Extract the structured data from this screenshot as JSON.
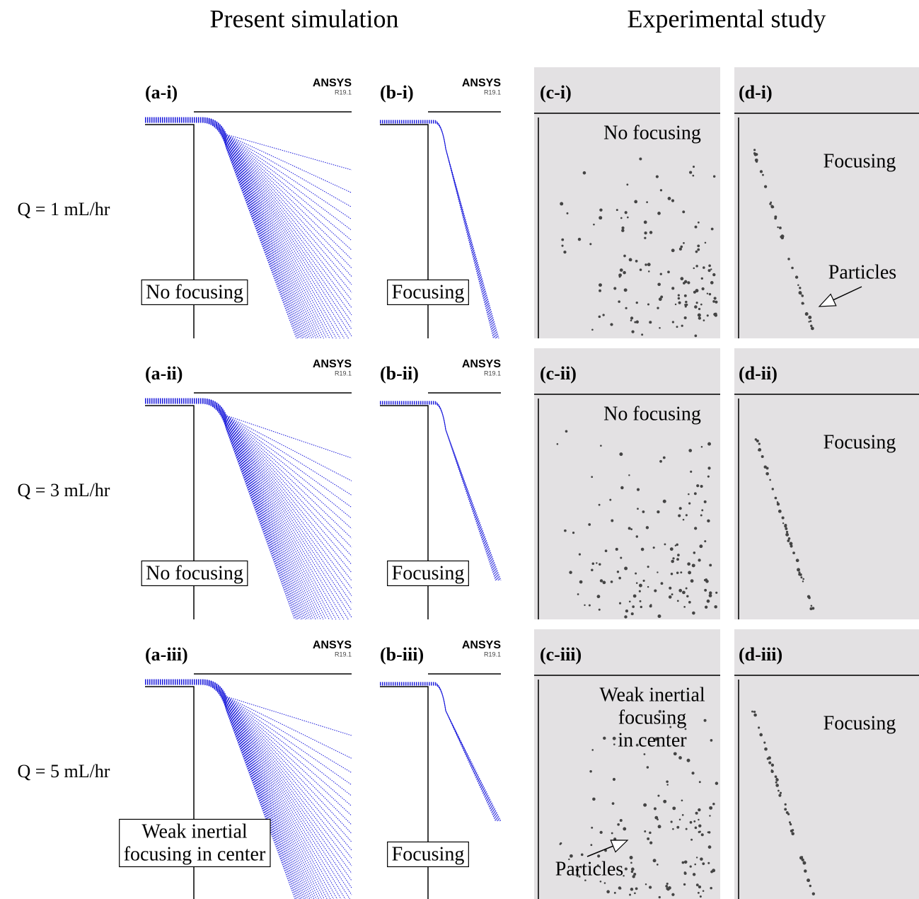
{
  "headers": [
    "Present simulation",
    "Experimental study"
  ],
  "rows": [
    {
      "label": "Q = 1 mL/hr",
      "panels": [
        {
          "label": "(a-i)",
          "logo": "ANSYS",
          "version": "R19.1",
          "annotation": [
            "No focusing"
          ]
        },
        {
          "label": "(b-i)",
          "logo": "ANSYS",
          "version": "R19.1",
          "annotation": [
            "Focusing"
          ]
        },
        {
          "label": "(c-i)",
          "annotation": [
            "No focusing"
          ]
        },
        {
          "label": "(d-i)",
          "annotation": [
            "Focusing"
          ],
          "pointer": "Particles"
        }
      ]
    },
    {
      "label": "Q = 3 mL/hr",
      "panels": [
        {
          "label": "(a-ii)",
          "logo": "ANSYS",
          "version": "R19.1",
          "annotation": [
            "No focusing"
          ]
        },
        {
          "label": "(b-ii)",
          "logo": "ANSYS",
          "version": "R19.1",
          "annotation": [
            "Focusing"
          ]
        },
        {
          "label": "(c-ii)",
          "annotation": [
            "No focusing"
          ]
        },
        {
          "label": "(d-ii)",
          "annotation": [
            "Focusing"
          ]
        }
      ]
    },
    {
      "label": "Q = 5 mL/hr",
      "panels": [
        {
          "label": "(a-iii)",
          "logo": "ANSYS",
          "version": "R19.1",
          "annotation": [
            "Weak inertial",
            "focusing in center"
          ]
        },
        {
          "label": "(b-iii)",
          "logo": "ANSYS",
          "version": "R19.1",
          "annotation": [
            "Focusing"
          ]
        },
        {
          "label": "(c-iii)",
          "annotation": [
            "Weak inertial",
            "focusing",
            "in center"
          ],
          "pointer": "Particles"
        },
        {
          "label": "(d-iii)",
          "annotation": [
            "Focusing"
          ]
        }
      ]
    }
  ]
}
